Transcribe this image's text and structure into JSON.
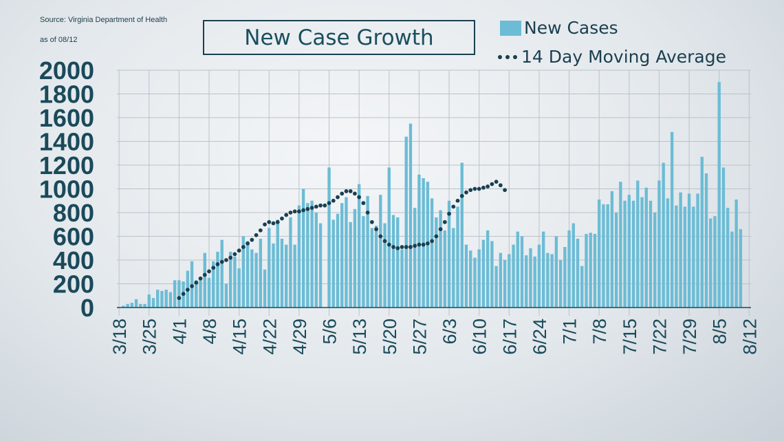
{
  "source_line": "Source:  Virginia Department  of Health",
  "as_of": "as of 08/12",
  "chart_data": {
    "type": "bar",
    "title": "New Case Growth",
    "xlabel": "",
    "ylabel": "",
    "ylim": [
      0,
      2000
    ],
    "yticks": [
      0,
      200,
      400,
      600,
      800,
      1000,
      1200,
      1400,
      1600,
      1800,
      2000
    ],
    "xtick_labels": [
      "3/18",
      "3/25",
      "4/1",
      "4/8",
      "4/15",
      "4/22",
      "4/29",
      "5/6",
      "5/13",
      "5/20",
      "5/27",
      "6/3",
      "6/10",
      "6/17",
      "6/24",
      "7/1",
      "7/8",
      "7/15",
      "7/22",
      "7/29",
      "8/5",
      "8/12"
    ],
    "grid": "vertical",
    "legend": "top-right",
    "series": [
      {
        "name": "New Cases",
        "type": "bar",
        "color": "#6cbcd5",
        "values": [
          5,
          15,
          30,
          40,
          70,
          30,
          30,
          110,
          80,
          150,
          140,
          150,
          130,
          230,
          230,
          220,
          310,
          390,
          230,
          240,
          460,
          250,
          390,
          470,
          570,
          200,
          470,
          430,
          330,
          600,
          560,
          490,
          460,
          580,
          320,
          670,
          540,
          740,
          580,
          530,
          760,
          530,
          860,
          1000,
          880,
          900,
          800,
          710,
          0,
          1180,
          740,
          790,
          880,
          930,
          720,
          830,
          1040,
          770,
          940,
          670,
          690,
          950,
          710,
          1180,
          780,
          760,
          490,
          1440,
          1550,
          840,
          1120,
          1090,
          1060,
          920,
          760,
          820,
          650,
          900,
          670,
          850,
          1220,
          530,
          480,
          420,
          490,
          570,
          650,
          560,
          350,
          460,
          400,
          450,
          530,
          640,
          600,
          440,
          500,
          430,
          530,
          640,
          460,
          450,
          600,
          400,
          510,
          650,
          710,
          580,
          350,
          620,
          630,
          620,
          910,
          870,
          870,
          980,
          800,
          1060,
          900,
          950,
          900,
          1070,
          930,
          1010,
          900,
          800,
          1070,
          1220,
          920,
          1480,
          860,
          970,
          850,
          960,
          850,
          960,
          1270,
          1130,
          750,
          770,
          1900,
          1180,
          840,
          640,
          910,
          660
        ]
      },
      {
        "name": "14 Day Moving Average",
        "type": "line",
        "style": "dotted",
        "color": "#1a3f4f",
        "start_index": 14,
        "values": [
          80,
          115,
          150,
          180,
          210,
          245,
          275,
          305,
          335,
          365,
          385,
          400,
          420,
          450,
          480,
          510,
          540,
          570,
          610,
          650,
          700,
          720,
          710,
          720,
          750,
          780,
          800,
          810,
          810,
          820,
          830,
          840,
          850,
          860,
          860,
          880,
          900,
          930,
          960,
          980,
          980,
          960,
          930,
          880,
          800,
          720,
          660,
          600,
          560,
          530,
          510,
          500,
          510,
          510,
          510,
          520,
          530,
          530,
          540,
          560,
          600,
          660,
          720,
          790,
          850,
          900,
          940,
          970,
          990,
          1000,
          1000,
          1010,
          1020,
          1040,
          1060,
          1030,
          990
        ]
      }
    ]
  }
}
